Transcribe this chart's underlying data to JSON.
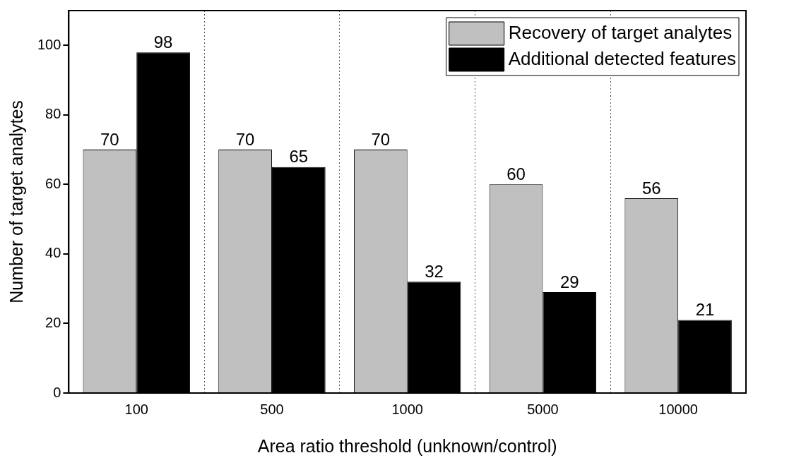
{
  "chart_data": {
    "type": "bar",
    "xlabel": "Area ratio threshold (unknown/control)",
    "ylabel": "Number of target analytes",
    "categories": [
      "100",
      "500",
      "1000",
      "5000",
      "10000"
    ],
    "series": [
      {
        "name": "Recovery of target analytes",
        "color": "#c0c0c0",
        "values": [
          70,
          70,
          70,
          60,
          56
        ]
      },
      {
        "name": "Additional detected features",
        "color": "#000000",
        "values": [
          98,
          65,
          32,
          29,
          21
        ]
      }
    ],
    "ylim": [
      0,
      110
    ],
    "yticks": [
      0,
      20,
      40,
      60,
      80,
      100
    ],
    "grid": "x",
    "legend": "top right",
    "data_labels": true
  }
}
